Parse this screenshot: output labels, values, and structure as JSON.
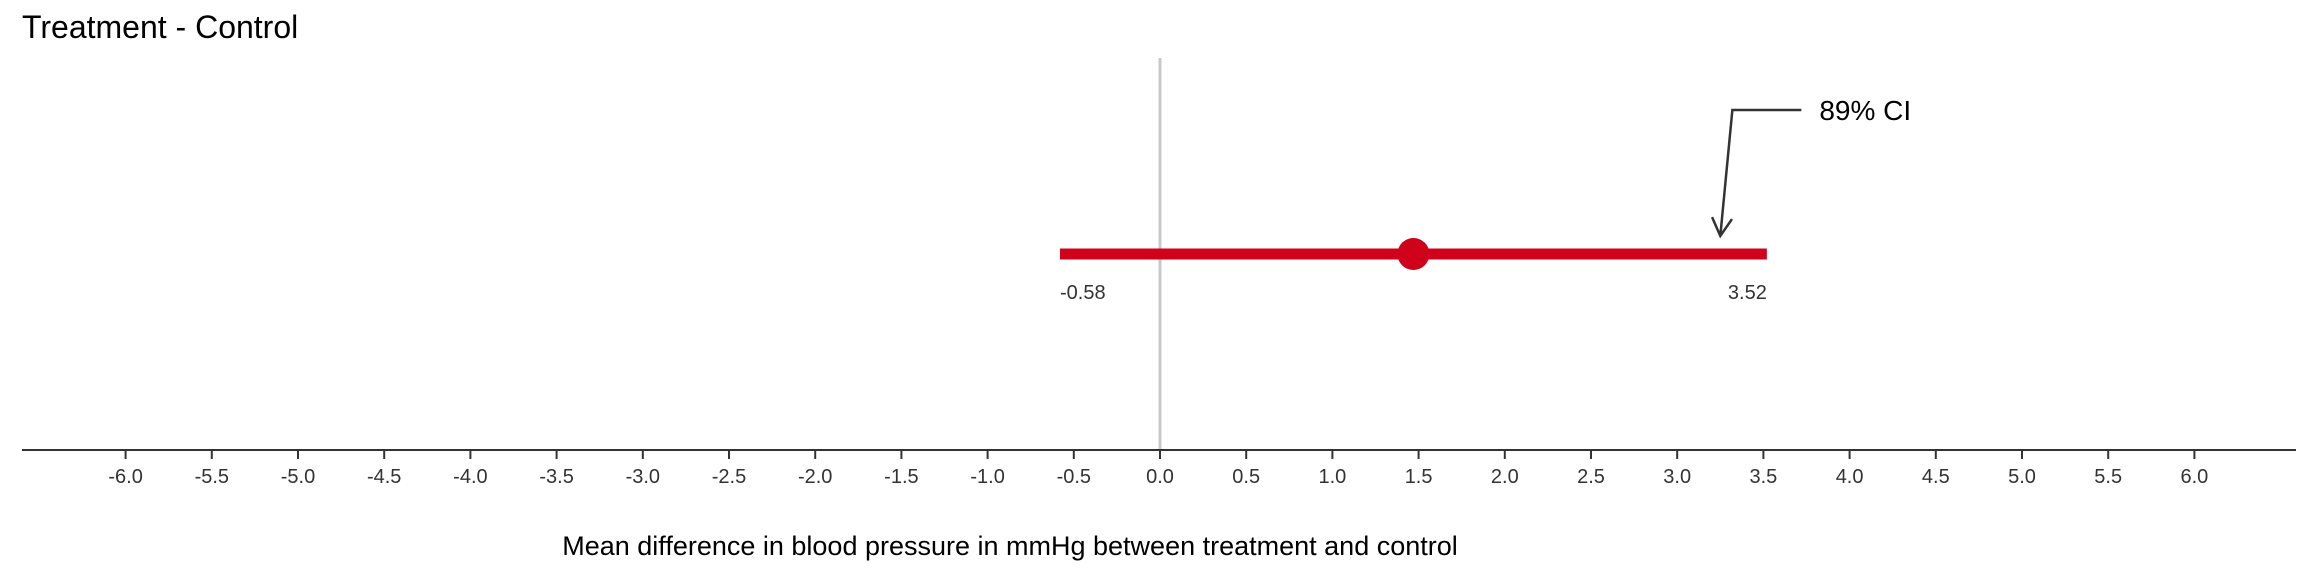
{
  "chart_data": {
    "type": "interval",
    "title": "Treatment - Control",
    "xlabel": "Mean difference in blood pressure in mmHg between treatment and control",
    "ylabel": "",
    "xlim": [
      -6.6,
      6.6
    ],
    "x_ticks": [
      -6.0,
      -5.5,
      -5.0,
      -4.5,
      -4.0,
      -3.5,
      -3.0,
      -2.5,
      -2.0,
      -1.5,
      -1.0,
      -0.5,
      0.0,
      0.5,
      1.0,
      1.5,
      2.0,
      2.5,
      3.0,
      3.5,
      4.0,
      4.5,
      5.0,
      5.5,
      6.0
    ],
    "x_tick_labels": [
      "-6.0",
      "-5.5",
      "-5.0",
      "-4.5",
      "-4.0",
      "-3.5",
      "-3.0",
      "-2.5",
      "-2.0",
      "-1.5",
      "-1.0",
      "-0.5",
      "0.0",
      "0.5",
      "1.0",
      "1.5",
      "2.0",
      "2.5",
      "3.0",
      "3.5",
      "4.0",
      "4.5",
      "5.0",
      "5.5",
      "6.0"
    ],
    "reference_line": 0,
    "estimate": 1.47,
    "ci_lower": -0.58,
    "ci_upper": 3.52,
    "ci_lower_label": "-0.58",
    "ci_upper_label": "3.52",
    "annotation": "89% CI",
    "grid": false,
    "colors": {
      "interval": "#d0021b",
      "reference": "#c8c8c8",
      "axis": "#333333",
      "annotation": "#333333"
    }
  }
}
